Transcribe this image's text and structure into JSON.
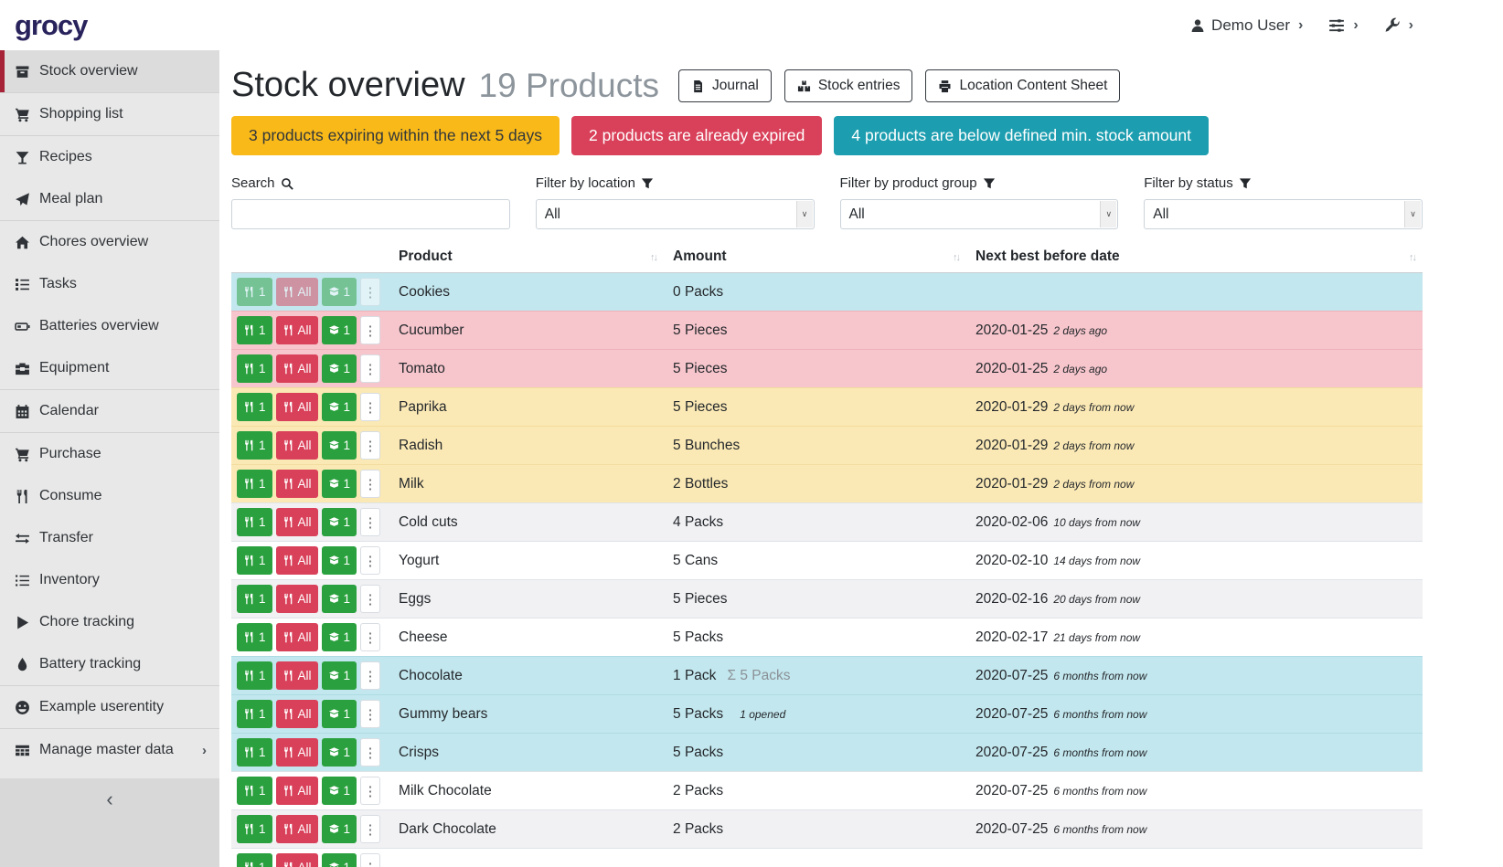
{
  "navbar": {
    "logo": "grocy",
    "user_label": "Demo User",
    "chevron": "›"
  },
  "sidebar": {
    "items": [
      {
        "label": "Stock overview",
        "icon": "box-icon",
        "active": true,
        "divider_after": true
      },
      {
        "label": "Shopping list",
        "icon": "cart-icon",
        "divider_after": true
      },
      {
        "label": "Recipes",
        "icon": "cocktail-icon"
      },
      {
        "label": "Meal plan",
        "icon": "paper-plane-icon",
        "divider_after": true
      },
      {
        "label": "Chores overview",
        "icon": "home-icon"
      },
      {
        "label": "Tasks",
        "icon": "tasks-icon"
      },
      {
        "label": "Batteries overview",
        "icon": "battery-icon"
      },
      {
        "label": "Equipment",
        "icon": "toolbox-icon",
        "divider_after": true
      },
      {
        "label": "Calendar",
        "icon": "calendar-icon",
        "divider_after": true
      },
      {
        "label": "Purchase",
        "icon": "cart-icon"
      },
      {
        "label": "Consume",
        "icon": "utensils-icon"
      },
      {
        "label": "Transfer",
        "icon": "exchange-icon"
      },
      {
        "label": "Inventory",
        "icon": "list-icon"
      },
      {
        "label": "Chore tracking",
        "icon": "play-icon"
      },
      {
        "label": "Battery tracking",
        "icon": "drop-icon",
        "divider_after": true
      },
      {
        "label": "Example userentity",
        "icon": "smiley-icon",
        "divider_after": true
      },
      {
        "label": "Manage master data",
        "icon": "table-icon",
        "submenu": "›"
      }
    ],
    "collapse_icon": "‹"
  },
  "header": {
    "title": "Stock overview",
    "count": "19 Products",
    "buttons": [
      {
        "name": "journal-button",
        "label": "Journal",
        "icon": "journal-icon"
      },
      {
        "name": "stock-entries-button",
        "label": "Stock entries",
        "icon": "boxes-icon"
      },
      {
        "name": "location-content-sheet-button",
        "label": "Location Content Sheet",
        "icon": "print-icon"
      }
    ]
  },
  "alerts": [
    {
      "name": "expiring-soon-alert",
      "text": "3 products expiring within the next 5 days",
      "bg": "#f9b919",
      "fg": "#32373b"
    },
    {
      "name": "expired-alert",
      "text": "2 products are already expired",
      "bg": "#d9415a",
      "fg": "#ffffff"
    },
    {
      "name": "below-min-stock-alert",
      "text": "4 products are below defined min. stock amount",
      "bg": "#1d9eb0",
      "fg": "#ffffff"
    }
  ],
  "filters": {
    "search": {
      "label": "Search",
      "value": ""
    },
    "location": {
      "label": "Filter by location",
      "value": "All"
    },
    "product_group": {
      "label": "Filter by product group",
      "value": "All"
    },
    "status": {
      "label": "Filter by status",
      "value": "All"
    }
  },
  "table": {
    "columns": [
      "Product",
      "Amount",
      "Next best before date"
    ],
    "sort_glyph": "↑↓",
    "row_buttons": {
      "consume_one": "1",
      "consume_all": "All",
      "open_one": "1",
      "menu": "⋮"
    },
    "rows": [
      {
        "product": "Cookies",
        "amount": "0 Packs",
        "date": "",
        "date_rel": "",
        "status": "info",
        "buttons_disabled": true
      },
      {
        "product": "Cucumber",
        "amount": "5 Pieces",
        "date": "2020-01-25",
        "date_rel": "2 days ago",
        "status": "danger"
      },
      {
        "product": "Tomato",
        "amount": "5 Pieces",
        "date": "2020-01-25",
        "date_rel": "2 days ago",
        "status": "danger"
      },
      {
        "product": "Paprika",
        "amount": "5 Pieces",
        "date": "2020-01-29",
        "date_rel": "2 days from now",
        "status": "warning"
      },
      {
        "product": "Radish",
        "amount": "5 Bunches",
        "date": "2020-01-29",
        "date_rel": "2 days from now",
        "status": "warning"
      },
      {
        "product": "Milk",
        "amount": "2 Bottles",
        "date": "2020-01-29",
        "date_rel": "2 days from now",
        "status": "warning"
      },
      {
        "product": "Cold cuts",
        "amount": "4 Packs",
        "date": "2020-02-06",
        "date_rel": "10 days from now",
        "status": "stripe"
      },
      {
        "product": "Yogurt",
        "amount": "5 Cans",
        "date": "2020-02-10",
        "date_rel": "14 days from now",
        "status": ""
      },
      {
        "product": "Eggs",
        "amount": "5 Pieces",
        "date": "2020-02-16",
        "date_rel": "20 days from now",
        "status": "stripe"
      },
      {
        "product": "Cheese",
        "amount": "5 Packs",
        "date": "2020-02-17",
        "date_rel": "21 days from now",
        "status": ""
      },
      {
        "product": "Chocolate",
        "amount": "1 Pack",
        "amount_sum": "Σ 5 Packs",
        "date": "2020-07-25",
        "date_rel": "6 months from now",
        "status": "info"
      },
      {
        "product": "Gummy bears",
        "amount": "5 Packs",
        "amount_note": "1 opened",
        "date": "2020-07-25",
        "date_rel": "6 months from now",
        "status": "info"
      },
      {
        "product": "Crisps",
        "amount": "5 Packs",
        "date": "2020-07-25",
        "date_rel": "6 months from now",
        "status": "info"
      },
      {
        "product": "Milk Chocolate",
        "amount": "2 Packs",
        "date": "2020-07-25",
        "date_rel": "6 months from now",
        "status": ""
      },
      {
        "product": "Dark Chocolate",
        "amount": "2 Packs",
        "date": "2020-07-25",
        "date_rel": "6 months from now",
        "status": "stripe"
      },
      {
        "product": "",
        "amount": "",
        "date": "",
        "date_rel": "",
        "status": ""
      }
    ]
  },
  "colors": {
    "accent_red": "#a72337",
    "green_button": "#2aa13e",
    "red_button": "#d9415a",
    "row_below_min_stock": "#c3e7ee",
    "row_expired": "#f6c6cc",
    "row_expiring": "#fbe9b5",
    "logo": "#29235c"
  }
}
